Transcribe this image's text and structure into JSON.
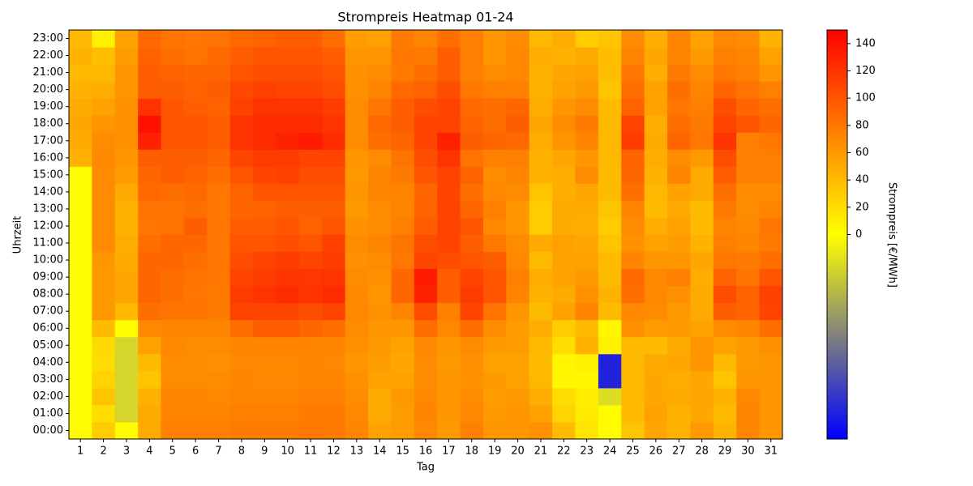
{
  "chart_data": {
    "type": "heatmap",
    "title": "Strompreis Heatmap 01-24",
    "x_label": "Tag",
    "y_label": "Uhrzeit",
    "colorbar_label": "Strompreis [€/MWh]",
    "x_categories": [
      "1",
      "2",
      "3",
      "4",
      "5",
      "6",
      "7",
      "8",
      "9",
      "10",
      "11",
      "12",
      "13",
      "14",
      "15",
      "16",
      "17",
      "18",
      "19",
      "20",
      "21",
      "22",
      "23",
      "24",
      "25",
      "26",
      "27",
      "28",
      "29",
      "30",
      "31"
    ],
    "y_categories": [
      "00:00",
      "01:00",
      "02:00",
      "03:00",
      "04:00",
      "05:00",
      "06:00",
      "07:00",
      "08:00",
      "09:00",
      "10:00",
      "11:00",
      "12:00",
      "13:00",
      "14:00",
      "15:00",
      "16:00",
      "17:00",
      "18:00",
      "19:00",
      "20:00",
      "21:00",
      "22:00",
      "23:00"
    ],
    "colormap": [
      "#0000ff",
      "#ffff00",
      "#ff0000"
    ],
    "clim": [
      -150,
      150
    ],
    "cticks": [
      0,
      20,
      40,
      60,
      80,
      100,
      120,
      140
    ],
    "values": [
      [
        2,
        2,
        2,
        2,
        2,
        2,
        2,
        2,
        2,
        2,
        2,
        2,
        2,
        2,
        2,
        2,
        45,
        50,
        52,
        50,
        45,
        42,
        45,
        42
      ],
      [
        30,
        20,
        35,
        25,
        20,
        22,
        40,
        60,
        60,
        60,
        62,
        68,
        68,
        68,
        68,
        68,
        70,
        68,
        62,
        55,
        48,
        42,
        38,
        8
      ],
      [
        2,
        -25,
        -25,
        -25,
        -25,
        -25,
        2,
        42,
        52,
        52,
        50,
        48,
        45,
        45,
        50,
        58,
        62,
        65,
        65,
        65,
        62,
        62,
        58,
        55
      ],
      [
        50,
        50,
        45,
        35,
        40,
        55,
        70,
        85,
        90,
        90,
        90,
        85,
        80,
        82,
        88,
        90,
        95,
        130,
        140,
        120,
        95,
        95,
        92,
        88
      ],
      [
        75,
        72,
        72,
        68,
        68,
        70,
        72,
        82,
        85,
        85,
        90,
        90,
        82,
        82,
        85,
        95,
        95,
        100,
        100,
        100,
        95,
        92,
        85,
        82
      ],
      [
        75,
        72,
        72,
        68,
        68,
        68,
        72,
        82,
        80,
        82,
        85,
        90,
        95,
        85,
        88,
        92,
        95,
        100,
        100,
        95,
        92,
        90,
        82,
        80
      ],
      [
        75,
        72,
        70,
        68,
        65,
        68,
        72,
        78,
        78,
        80,
        80,
        80,
        80,
        80,
        80,
        85,
        90,
        95,
        95,
        92,
        95,
        90,
        88,
        82
      ],
      [
        78,
        75,
        72,
        72,
        70,
        72,
        85,
        110,
        115,
        110,
        105,
        100,
        95,
        90,
        92,
        100,
        110,
        120,
        120,
        112,
        108,
        100,
        95,
        88
      ],
      [
        78,
        75,
        72,
        70,
        70,
        72,
        95,
        110,
        120,
        115,
        110,
        100,
        95,
        92,
        100,
        110,
        115,
        125,
        125,
        120,
        112,
        105,
        100,
        92
      ],
      [
        78,
        75,
        72,
        70,
        70,
        72,
        95,
        110,
        125,
        120,
        115,
        105,
        100,
        95,
        100,
        112,
        115,
        130,
        125,
        120,
        110,
        105,
        100,
        95
      ],
      [
        80,
        78,
        75,
        72,
        72,
        72,
        90,
        105,
        120,
        118,
        110,
        100,
        92,
        95,
        100,
        105,
        110,
        135,
        125,
        120,
        110,
        105,
        100,
        95
      ],
      [
        78,
        78,
        75,
        72,
        70,
        72,
        85,
        110,
        125,
        120,
        115,
        112,
        100,
        95,
        100,
        105,
        110,
        125,
        120,
        115,
        105,
        100,
        95,
        85
      ],
      [
        72,
        70,
        68,
        65,
        62,
        65,
        68,
        70,
        70,
        68,
        65,
        68,
        65,
        60,
        62,
        60,
        62,
        68,
        68,
        68,
        65,
        65,
        62,
        58
      ],
      [
        55,
        50,
        50,
        55,
        58,
        60,
        62,
        65,
        62,
        65,
        68,
        72,
        68,
        68,
        72,
        72,
        68,
        85,
        88,
        80,
        72,
        68,
        62,
        55
      ],
      [
        58,
        58,
        60,
        55,
        52,
        55,
        62,
        72,
        90,
        90,
        80,
        82,
        75,
        72,
        72,
        78,
        82,
        90,
        95,
        95,
        88,
        78,
        80,
        78
      ],
      [
        70,
        72,
        70,
        68,
        68,
        70,
        85,
        105,
        130,
        135,
        110,
        105,
        95,
        92,
        90,
        100,
        105,
        110,
        110,
        105,
        92,
        85,
        78,
        72
      ],
      [
        60,
        62,
        62,
        62,
        60,
        62,
        70,
        75,
        95,
        95,
        105,
        110,
        110,
        110,
        110,
        110,
        120,
        130,
        110,
        110,
        105,
        95,
        95,
        85
      ],
      [
        75,
        70,
        68,
        65,
        65,
        68,
        85,
        110,
        115,
        110,
        100,
        95,
        100,
        90,
        85,
        92,
        82,
        95,
        92,
        88,
        80,
        75,
        75,
        75
      ],
      [
        62,
        60,
        58,
        60,
        55,
        60,
        68,
        82,
        100,
        100,
        95,
        80,
        70,
        75,
        70,
        68,
        75,
        90,
        85,
        85,
        75,
        68,
        62,
        62
      ],
      [
        62,
        62,
        60,
        55,
        55,
        58,
        58,
        62,
        72,
        75,
        70,
        68,
        62,
        62,
        68,
        72,
        75,
        88,
        95,
        90,
        75,
        70,
        70,
        68
      ],
      [
        65,
        55,
        48,
        42,
        40,
        42,
        48,
        40,
        45,
        48,
        40,
        50,
        30,
        30,
        35,
        45,
        45,
        48,
        52,
        48,
        45,
        45,
        48,
        42
      ],
      [
        40,
        25,
        20,
        5,
        5,
        20,
        30,
        55,
        50,
        55,
        55,
        55,
        50,
        50,
        48,
        48,
        52,
        62,
        68,
        62,
        55,
        52,
        45,
        48
      ],
      [
        15,
        12,
        10,
        5,
        8,
        45,
        40,
        72,
        65,
        60,
        55,
        52,
        48,
        50,
        52,
        68,
        62,
        72,
        78,
        68,
        60,
        55,
        50,
        30
      ],
      [
        2,
        2,
        -20,
        -130,
        -130,
        8,
        5,
        40,
        45,
        40,
        40,
        35,
        30,
        35,
        40,
        40,
        42,
        42,
        42,
        40,
        35,
        38,
        38,
        35
      ],
      [
        35,
        40,
        42,
        40,
        42,
        40,
        65,
        70,
        85,
        88,
        72,
        65,
        68,
        72,
        85,
        90,
        92,
        115,
        110,
        92,
        85,
        80,
        72,
        68
      ],
      [
        52,
        55,
        52,
        52,
        50,
        40,
        58,
        68,
        70,
        70,
        62,
        55,
        48,
        40,
        42,
        45,
        48,
        50,
        48,
        55,
        55,
        48,
        52,
        48
      ],
      [
        45,
        45,
        50,
        48,
        52,
        50,
        60,
        60,
        65,
        75,
        62,
        58,
        55,
        50,
        55,
        72,
        68,
        90,
        85,
        80,
        85,
        78,
        72,
        72
      ],
      [
        60,
        52,
        52,
        52,
        62,
        62,
        55,
        50,
        50,
        48,
        52,
        45,
        40,
        40,
        50,
        50,
        60,
        80,
        78,
        75,
        72,
        68,
        60,
        55
      ],
      [
        45,
        40,
        45,
        35,
        42,
        55,
        68,
        95,
        105,
        92,
        80,
        75,
        72,
        78,
        85,
        95,
        105,
        120,
        110,
        105,
        90,
        80,
        75,
        70
      ],
      [
        72,
        72,
        70,
        62,
        60,
        60,
        72,
        90,
        92,
        82,
        78,
        72,
        70,
        68,
        68,
        75,
        75,
        75,
        100,
        90,
        82,
        75,
        72,
        68
      ],
      [
        62,
        62,
        62,
        62,
        62,
        65,
        85,
        110,
        112,
        100,
        85,
        78,
        80,
        72,
        68,
        75,
        75,
        80,
        90,
        85,
        75,
        62,
        55,
        45
      ]
    ]
  }
}
